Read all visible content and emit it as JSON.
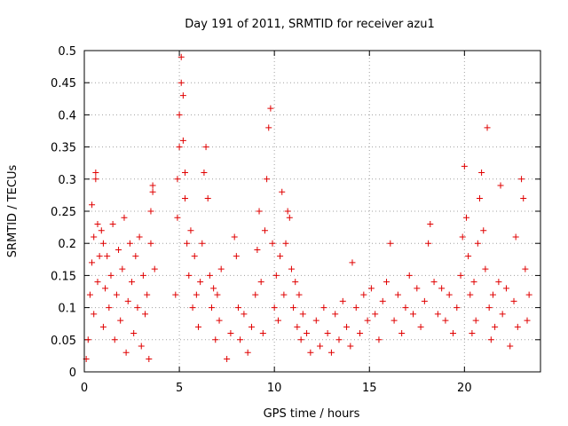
{
  "chart_data": {
    "type": "scatter",
    "title": "Day 191 of 2011, SRMTID for receiver azu1",
    "xlabel": "GPS time / hours",
    "ylabel": "SRMTID / TECUs",
    "xlim": [
      0,
      24
    ],
    "ylim": [
      0,
      0.5
    ],
    "grid": true,
    "marker": "+",
    "marker_color": "#e00000",
    "x_ticks": [
      {
        "value": 0,
        "label": "0"
      },
      {
        "value": 5,
        "label": "5"
      },
      {
        "value": 10,
        "label": "10"
      },
      {
        "value": 15,
        "label": "15"
      },
      {
        "value": 20,
        "label": "20"
      }
    ],
    "y_ticks": [
      {
        "value": 0,
        "label": "0"
      },
      {
        "value": 0.05,
        "label": "0.05"
      },
      {
        "value": 0.1,
        "label": "0.1"
      },
      {
        "value": 0.15,
        "label": "0.15"
      },
      {
        "value": 0.2,
        "label": "0.2"
      },
      {
        "value": 0.25,
        "label": "0.25"
      },
      {
        "value": 0.3,
        "label": "0.3"
      },
      {
        "value": 0.35,
        "label": "0.35"
      },
      {
        "value": 0.4,
        "label": "0.4"
      },
      {
        "value": 0.45,
        "label": "0.45"
      },
      {
        "value": 0.5,
        "label": "0.5"
      }
    ],
    "series": [
      {
        "name": "SRMTID",
        "points": [
          [
            0.1,
            0.02
          ],
          [
            0.2,
            0.05
          ],
          [
            0.3,
            0.12
          ],
          [
            0.4,
            0.17
          ],
          [
            0.4,
            0.26
          ],
          [
            0.5,
            0.21
          ],
          [
            0.5,
            0.09
          ],
          [
            0.6,
            0.3
          ],
          [
            0.6,
            0.31
          ],
          [
            0.7,
            0.23
          ],
          [
            0.7,
            0.14
          ],
          [
            0.8,
            0.18
          ],
          [
            0.9,
            0.22
          ],
          [
            1.0,
            0.07
          ],
          [
            1.0,
            0.2
          ],
          [
            1.1,
            0.13
          ],
          [
            1.2,
            0.18
          ],
          [
            1.3,
            0.1
          ],
          [
            1.4,
            0.15
          ],
          [
            1.5,
            0.23
          ],
          [
            1.6,
            0.05
          ],
          [
            1.7,
            0.12
          ],
          [
            1.8,
            0.19
          ],
          [
            1.9,
            0.08
          ],
          [
            2.0,
            0.16
          ],
          [
            2.1,
            0.24
          ],
          [
            2.2,
            0.03
          ],
          [
            2.3,
            0.11
          ],
          [
            2.4,
            0.2
          ],
          [
            2.5,
            0.14
          ],
          [
            2.6,
            0.06
          ],
          [
            2.7,
            0.18
          ],
          [
            2.8,
            0.1
          ],
          [
            2.9,
            0.21
          ],
          [
            3.0,
            0.04
          ],
          [
            3.1,
            0.15
          ],
          [
            3.2,
            0.09
          ],
          [
            3.3,
            0.12
          ],
          [
            3.4,
            0.02
          ],
          [
            3.5,
            0.2
          ],
          [
            3.5,
            0.25
          ],
          [
            3.6,
            0.28
          ],
          [
            3.6,
            0.29
          ],
          [
            3.7,
            0.16
          ],
          [
            4.8,
            0.12
          ],
          [
            4.9,
            0.24
          ],
          [
            4.9,
            0.3
          ],
          [
            5.0,
            0.35
          ],
          [
            5.0,
            0.4
          ],
          [
            5.1,
            0.49
          ],
          [
            5.1,
            0.45
          ],
          [
            5.2,
            0.43
          ],
          [
            5.2,
            0.36
          ],
          [
            5.3,
            0.31
          ],
          [
            5.3,
            0.27
          ],
          [
            5.4,
            0.2
          ],
          [
            5.5,
            0.15
          ],
          [
            5.6,
            0.22
          ],
          [
            5.7,
            0.1
          ],
          [
            5.8,
            0.18
          ],
          [
            5.9,
            0.12
          ],
          [
            6.0,
            0.07
          ],
          [
            6.1,
            0.14
          ],
          [
            6.2,
            0.2
          ],
          [
            6.3,
            0.31
          ],
          [
            6.4,
            0.35
          ],
          [
            6.5,
            0.27
          ],
          [
            6.6,
            0.15
          ],
          [
            6.7,
            0.1
          ],
          [
            6.8,
            0.13
          ],
          [
            6.9,
            0.05
          ],
          [
            7.0,
            0.12
          ],
          [
            7.1,
            0.08
          ],
          [
            7.2,
            0.16
          ],
          [
            7.5,
            0.02
          ],
          [
            7.7,
            0.06
          ],
          [
            7.9,
            0.21
          ],
          [
            8.0,
            0.18
          ],
          [
            8.1,
            0.1
          ],
          [
            8.2,
            0.05
          ],
          [
            8.4,
            0.09
          ],
          [
            8.6,
            0.03
          ],
          [
            8.8,
            0.07
          ],
          [
            9.0,
            0.12
          ],
          [
            9.1,
            0.19
          ],
          [
            9.2,
            0.25
          ],
          [
            9.3,
            0.14
          ],
          [
            9.4,
            0.06
          ],
          [
            9.5,
            0.22
          ],
          [
            9.6,
            0.3
          ],
          [
            9.7,
            0.38
          ],
          [
            9.8,
            0.41
          ],
          [
            9.9,
            0.2
          ],
          [
            10.0,
            0.1
          ],
          [
            10.1,
            0.15
          ],
          [
            10.2,
            0.08
          ],
          [
            10.3,
            0.18
          ],
          [
            10.4,
            0.28
          ],
          [
            10.5,
            0.12
          ],
          [
            10.6,
            0.2
          ],
          [
            10.7,
            0.25
          ],
          [
            10.8,
            0.24
          ],
          [
            10.9,
            0.16
          ],
          [
            11.0,
            0.1
          ],
          [
            11.1,
            0.14
          ],
          [
            11.2,
            0.07
          ],
          [
            11.3,
            0.12
          ],
          [
            11.4,
            0.05
          ],
          [
            11.5,
            0.09
          ],
          [
            11.7,
            0.06
          ],
          [
            11.9,
            0.03
          ],
          [
            12.2,
            0.08
          ],
          [
            12.4,
            0.04
          ],
          [
            12.6,
            0.1
          ],
          [
            12.8,
            0.06
          ],
          [
            13.0,
            0.03
          ],
          [
            13.2,
            0.09
          ],
          [
            13.4,
            0.05
          ],
          [
            13.6,
            0.11
          ],
          [
            13.8,
            0.07
          ],
          [
            14.0,
            0.04
          ],
          [
            14.1,
            0.17
          ],
          [
            14.3,
            0.1
          ],
          [
            14.5,
            0.06
          ],
          [
            14.7,
            0.12
          ],
          [
            14.9,
            0.08
          ],
          [
            15.1,
            0.13
          ],
          [
            15.3,
            0.09
          ],
          [
            15.5,
            0.05
          ],
          [
            15.7,
            0.11
          ],
          [
            15.9,
            0.14
          ],
          [
            16.1,
            0.2
          ],
          [
            16.3,
            0.08
          ],
          [
            16.5,
            0.12
          ],
          [
            16.7,
            0.06
          ],
          [
            16.9,
            0.1
          ],
          [
            17.1,
            0.15
          ],
          [
            17.3,
            0.09
          ],
          [
            17.5,
            0.13
          ],
          [
            17.7,
            0.07
          ],
          [
            17.9,
            0.11
          ],
          [
            18.1,
            0.2
          ],
          [
            18.2,
            0.23
          ],
          [
            18.4,
            0.14
          ],
          [
            18.6,
            0.09
          ],
          [
            18.8,
            0.13
          ],
          [
            19.0,
            0.08
          ],
          [
            19.2,
            0.12
          ],
          [
            19.4,
            0.06
          ],
          [
            19.6,
            0.1
          ],
          [
            19.8,
            0.15
          ],
          [
            19.9,
            0.21
          ],
          [
            20.0,
            0.32
          ],
          [
            20.1,
            0.24
          ],
          [
            20.2,
            0.18
          ],
          [
            20.3,
            0.12
          ],
          [
            20.4,
            0.06
          ],
          [
            20.5,
            0.14
          ],
          [
            20.6,
            0.08
          ],
          [
            20.7,
            0.2
          ],
          [
            20.8,
            0.27
          ],
          [
            20.9,
            0.31
          ],
          [
            21.0,
            0.22
          ],
          [
            21.1,
            0.16
          ],
          [
            21.2,
            0.38
          ],
          [
            21.3,
            0.1
          ],
          [
            21.4,
            0.05
          ],
          [
            21.5,
            0.12
          ],
          [
            21.6,
            0.07
          ],
          [
            21.8,
            0.14
          ],
          [
            21.9,
            0.29
          ],
          [
            22.0,
            0.09
          ],
          [
            22.2,
            0.13
          ],
          [
            22.4,
            0.04
          ],
          [
            22.6,
            0.11
          ],
          [
            22.7,
            0.21
          ],
          [
            22.8,
            0.07
          ],
          [
            23.0,
            0.3
          ],
          [
            23.1,
            0.27
          ],
          [
            23.2,
            0.16
          ],
          [
            23.3,
            0.08
          ],
          [
            23.4,
            0.12
          ]
        ]
      }
    ]
  }
}
